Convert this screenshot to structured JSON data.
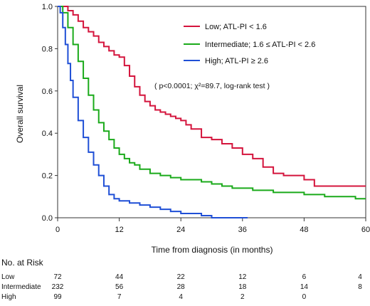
{
  "chart_data": {
    "type": "line",
    "xlabel": "Time from diagnosis (in months)",
    "ylabel": "Overall survival",
    "xlim": [
      0,
      60
    ],
    "ylim": [
      0,
      1.0
    ],
    "xticks": [
      "0",
      "12",
      "24",
      "36",
      "48",
      "60"
    ],
    "yticks": [
      "0.0",
      "0.2",
      "0.4",
      "0.6",
      "0.8",
      "1.0"
    ],
    "legend_position": "top-right",
    "annotation": "( p<0.0001; χ²=89.7, log-rank test )",
    "series": [
      {
        "name": "Low; ATL-PI < 1.6",
        "color": "#d4143c",
        "x": [
          0,
          1,
          2,
          3,
          4,
          5,
          6,
          7,
          8,
          9,
          10,
          11,
          12,
          13,
          14,
          15,
          16,
          17,
          18,
          19,
          20,
          21,
          22,
          23,
          24,
          25,
          26,
          28,
          30,
          32,
          34,
          36,
          38,
          40,
          42,
          44,
          46,
          48,
          50,
          52,
          55,
          58,
          60
        ],
        "y": [
          1.0,
          1.0,
          0.98,
          0.96,
          0.93,
          0.9,
          0.88,
          0.86,
          0.83,
          0.81,
          0.79,
          0.77,
          0.76,
          0.72,
          0.67,
          0.62,
          0.58,
          0.55,
          0.53,
          0.51,
          0.5,
          0.49,
          0.48,
          0.47,
          0.46,
          0.44,
          0.42,
          0.38,
          0.37,
          0.35,
          0.33,
          0.3,
          0.28,
          0.24,
          0.21,
          0.2,
          0.2,
          0.18,
          0.15,
          0.15,
          0.15,
          0.15,
          0.15
        ]
      },
      {
        "name": "Intermediate; 1.6 ≤ ATL-PI < 2.6",
        "color": "#1aaa1a",
        "x": [
          0,
          1,
          2,
          3,
          4,
          5,
          6,
          7,
          8,
          9,
          10,
          11,
          12,
          13,
          14,
          15,
          16,
          18,
          20,
          22,
          24,
          26,
          28,
          30,
          32,
          34,
          36,
          38,
          40,
          42,
          44,
          46,
          48,
          50,
          52,
          55,
          58,
          60
        ],
        "y": [
          1.0,
          0.97,
          0.9,
          0.82,
          0.74,
          0.66,
          0.58,
          0.51,
          0.45,
          0.41,
          0.37,
          0.33,
          0.3,
          0.28,
          0.26,
          0.25,
          0.23,
          0.21,
          0.2,
          0.19,
          0.18,
          0.18,
          0.17,
          0.16,
          0.15,
          0.14,
          0.14,
          0.13,
          0.13,
          0.12,
          0.12,
          0.12,
          0.11,
          0.11,
          0.1,
          0.1,
          0.09,
          0.09
        ]
      },
      {
        "name": "High; ATL-PI ≥ 2.6",
        "color": "#1f4fd6",
        "x": [
          0,
          0.5,
          1,
          1.5,
          2,
          2.5,
          3,
          4,
          5,
          6,
          7,
          8,
          9,
          10,
          11,
          12,
          14,
          16,
          18,
          20,
          22,
          24,
          26,
          28,
          30,
          32,
          34,
          36,
          37
        ],
        "y": [
          1.0,
          0.97,
          0.9,
          0.82,
          0.73,
          0.65,
          0.57,
          0.46,
          0.38,
          0.31,
          0.25,
          0.2,
          0.15,
          0.11,
          0.09,
          0.08,
          0.07,
          0.06,
          0.05,
          0.04,
          0.03,
          0.02,
          0.02,
          0.01,
          0.0,
          0.0,
          0.0,
          0.0,
          0.0
        ]
      }
    ]
  },
  "risk_table": {
    "title": "No. at Risk",
    "times": [
      0,
      12,
      24,
      36,
      48,
      60
    ],
    "rows": [
      {
        "label": "Low",
        "values": [
          "72",
          "44",
          "22",
          "12",
          "6",
          "4"
        ]
      },
      {
        "label": "Intermediate",
        "values": [
          "232",
          "56",
          "28",
          "18",
          "14",
          "8"
        ]
      },
      {
        "label": "High",
        "values": [
          "99",
          "7",
          "4",
          "2",
          "0",
          ""
        ]
      }
    ]
  }
}
